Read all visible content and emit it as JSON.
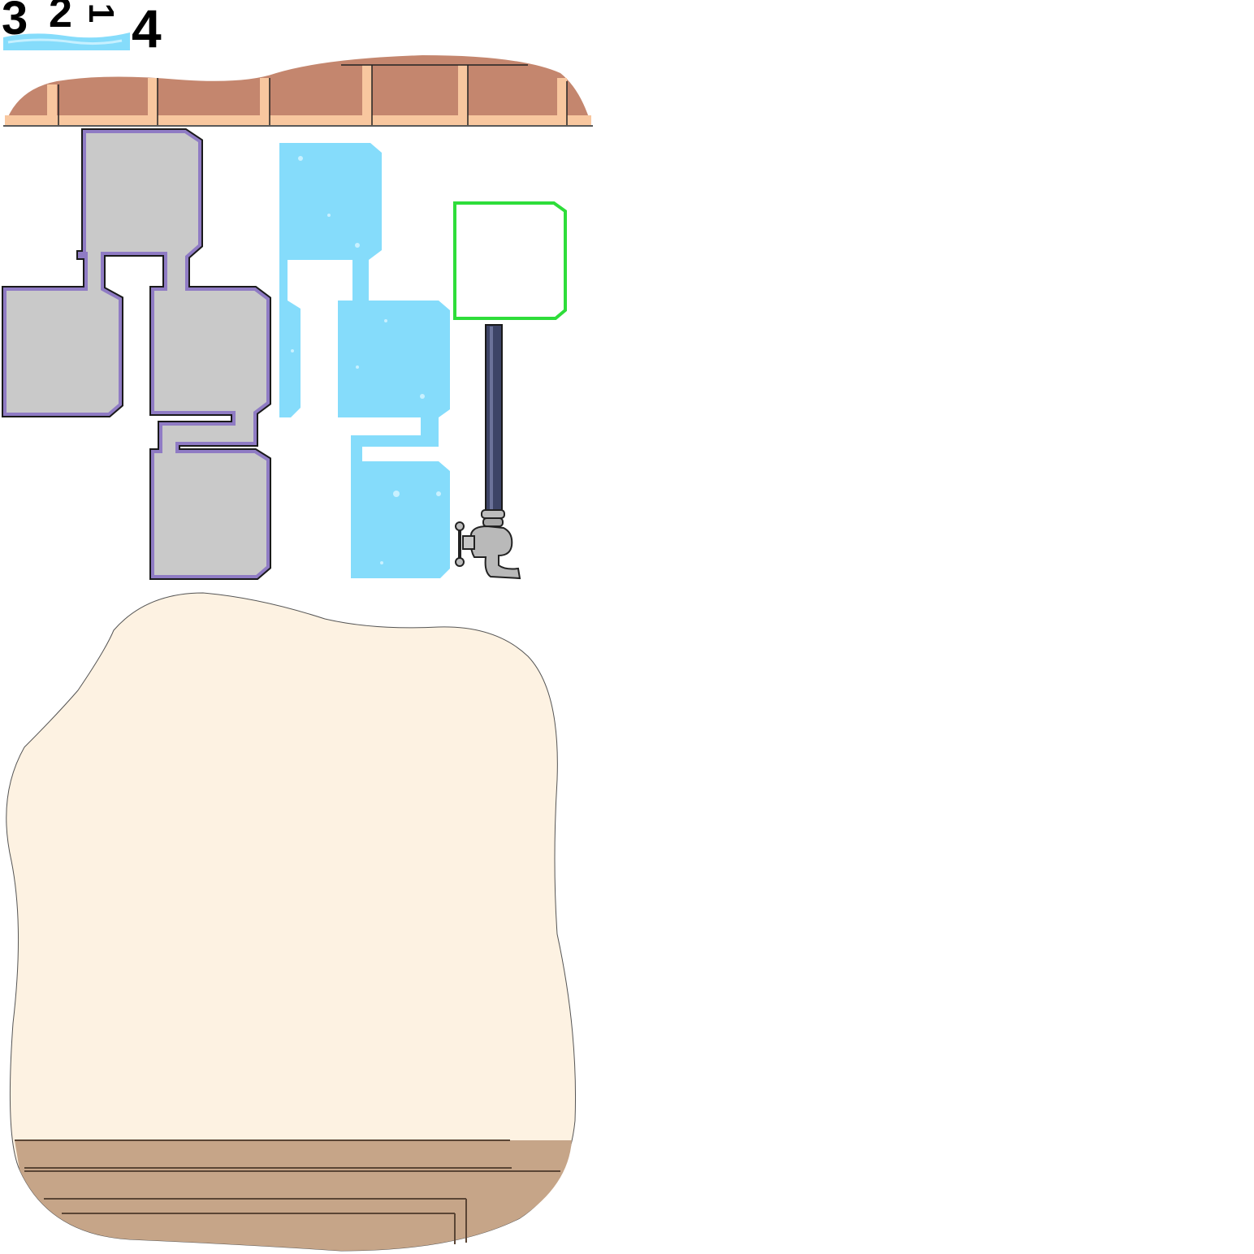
{
  "hud": {
    "digits": [
      "3",
      "2",
      "1",
      "4"
    ]
  },
  "colors": {
    "brick": "#c4866e",
    "brick_mortar": "#f8c79f",
    "pipe_fill": "#c9c9c9",
    "pipe_border": "#8f7bc4",
    "water": "#85dcfb",
    "target_outline": "#2edd3a",
    "floor": "#fdf2e2",
    "wood": "#c6a588",
    "tap_pipe": "#3d4466"
  },
  "icons": {
    "water_strip": "water-strip-icon",
    "faucet": "faucet-icon"
  }
}
